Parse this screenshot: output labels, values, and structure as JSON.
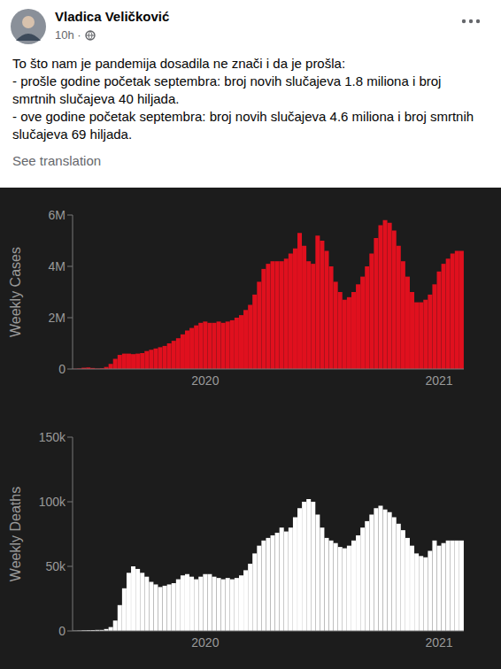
{
  "post": {
    "author": "Vladica Veličković",
    "time": "10h ·",
    "text": [
      "To što nam je pandemija dosadila ne znači i da je prošla:",
      "- prošle godine početak septembra: broj novih slučajeva 1.8 miliona i broj smrtnih slučajeva 40 hiljada.",
      "- ove godine početak septembra: broj novih slučajeva 4.6 miliona i broj smrtnih slučajeva 69 hiljada."
    ],
    "translate": "See translation"
  },
  "chart_data": [
    {
      "type": "bar",
      "y_label": "Weekly Cases",
      "color": "#e0101e",
      "grid": false,
      "ylim": [
        0,
        6000000
      ],
      "yticks": [
        0,
        {
          "value": 2000000,
          "label": "2M"
        },
        {
          "value": 4000000,
          "label": "4M"
        },
        {
          "value": 6000000,
          "label": "6M"
        }
      ],
      "categories": [
        null,
        null,
        null,
        null,
        null,
        null,
        null,
        null,
        null,
        null,
        null,
        null,
        null,
        null,
        null,
        null,
        null,
        null,
        null,
        null,
        null,
        null,
        null,
        null,
        null,
        null,
        null,
        null,
        null,
        "2020",
        null,
        null,
        null,
        null,
        null,
        null,
        null,
        null,
        null,
        null,
        null,
        null,
        null,
        null,
        null,
        null,
        null,
        null,
        null,
        null,
        null,
        null,
        null,
        null,
        null,
        null,
        null,
        null,
        null,
        null,
        null,
        null,
        null,
        null,
        null,
        null,
        null,
        null,
        null,
        null,
        null,
        null,
        null,
        null,
        null,
        null,
        null,
        null,
        null,
        null,
        null,
        "2021",
        null,
        null,
        null,
        null,
        null
      ],
      "values": [
        10000,
        20000,
        50000,
        60000,
        40000,
        20000,
        30000,
        80000,
        200000,
        400000,
        550000,
        600000,
        600000,
        580000,
        600000,
        620000,
        700000,
        750000,
        800000,
        850000,
        900000,
        1000000,
        1100000,
        1200000,
        1350000,
        1500000,
        1600000,
        1700000,
        1800000,
        1850000,
        1800000,
        1800000,
        1850000,
        1800000,
        1850000,
        1900000,
        2000000,
        2100000,
        2300000,
        2500000,
        2900000,
        3400000,
        3900000,
        4100000,
        4200000,
        4200000,
        4200000,
        4300000,
        4500000,
        4700000,
        5300000,
        4800000,
        4200000,
        4100000,
        5200000,
        5000000,
        4600000,
        4000000,
        3400000,
        3000000,
        2700000,
        2800000,
        3000000,
        3300000,
        3600000,
        4000000,
        4500000,
        5100000,
        5600000,
        5800000,
        5700000,
        5400000,
        4800000,
        4200000,
        3600000,
        3000000,
        2600000,
        2600000,
        2700000,
        2900000,
        3300000,
        3800000,
        4100000,
        4300000,
        4500000,
        4600000,
        4600000
      ]
    },
    {
      "type": "bar",
      "y_label": "Weekly Deaths",
      "color": "#ffffff",
      "grid": false,
      "ylim": [
        0,
        150000
      ],
      "yticks": [
        0,
        {
          "value": 50000,
          "label": "50k"
        },
        {
          "value": 100000,
          "label": "100k"
        },
        {
          "value": 150000,
          "label": "150k"
        }
      ],
      "categories": [
        null,
        null,
        null,
        null,
        null,
        null,
        null,
        null,
        null,
        null,
        null,
        null,
        null,
        null,
        null,
        null,
        null,
        null,
        null,
        null,
        null,
        null,
        null,
        null,
        null,
        null,
        null,
        null,
        null,
        "2020",
        null,
        null,
        null,
        null,
        null,
        null,
        null,
        null,
        null,
        null,
        null,
        null,
        null,
        null,
        null,
        null,
        null,
        null,
        null,
        null,
        null,
        null,
        null,
        null,
        null,
        null,
        null,
        null,
        null,
        null,
        null,
        null,
        null,
        null,
        null,
        null,
        null,
        null,
        null,
        null,
        null,
        null,
        null,
        null,
        null,
        null,
        null,
        null,
        null,
        null,
        null,
        "2021",
        null,
        null,
        null,
        null,
        null
      ],
      "values": [
        200,
        300,
        500,
        600,
        700,
        800,
        800,
        1500,
        3000,
        8000,
        20000,
        33000,
        45000,
        50000,
        48000,
        45000,
        42000,
        38000,
        36000,
        34000,
        35000,
        36000,
        37000,
        40000,
        43000,
        44000,
        42000,
        40000,
        42000,
        44000,
        44000,
        42000,
        41000,
        40000,
        41000,
        40000,
        41000,
        43000,
        47000,
        52000,
        60000,
        66000,
        70000,
        72000,
        74000,
        76000,
        80000,
        77000,
        80000,
        88000,
        95000,
        100000,
        102000,
        100000,
        90000,
        80000,
        72000,
        70000,
        68000,
        65000,
        64000,
        66000,
        70000,
        74000,
        80000,
        85000,
        90000,
        95000,
        97000,
        94000,
        92000,
        88000,
        83000,
        78000,
        72000,
        66000,
        60000,
        58000,
        57000,
        62000,
        70000,
        66000,
        68000,
        70000,
        70000,
        70000,
        70000
      ]
    }
  ]
}
